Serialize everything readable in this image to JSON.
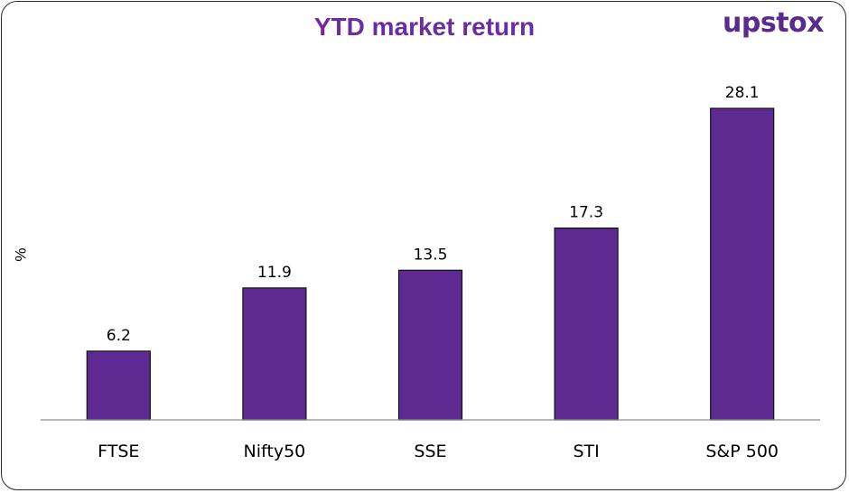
{
  "brand": {
    "logo_text": "upstox",
    "accent": "#5e2a91",
    "title_color": "#6a2ca0"
  },
  "chart_data": {
    "type": "bar",
    "title": "YTD market return",
    "ylabel": "%",
    "xlabel": "",
    "categories": [
      "FTSE",
      "Nifty50",
      "SSE",
      "STI",
      "S&P 500"
    ],
    "values": [
      6.2,
      11.9,
      13.5,
      17.3,
      28.1
    ],
    "value_labels": [
      "6.2",
      "11.9",
      "13.5",
      "17.3",
      "28.1"
    ],
    "ylim": [
      0,
      31
    ],
    "grid": false,
    "legend": "none"
  }
}
